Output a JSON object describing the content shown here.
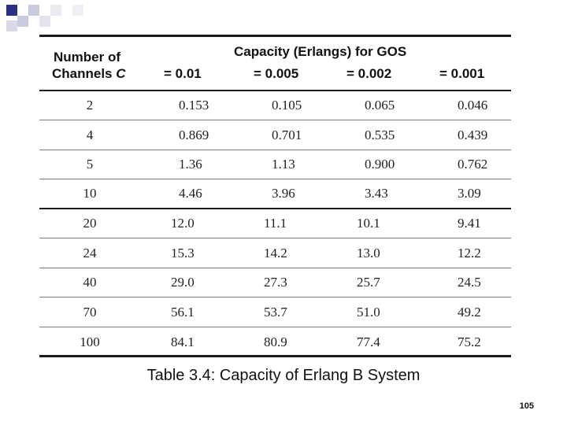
{
  "table": {
    "header_left_line1": "Number of",
    "header_left_line2": "Channels",
    "header_left_var": "C",
    "header_title": "Capacity (Erlangs) for GOS",
    "gos_columns": [
      "= 0.01",
      "= 0.005",
      "= 0.002",
      "= 0.001"
    ],
    "rows": [
      {
        "c": "2",
        "values": [
          "0.153",
          "0.105",
          "0.065",
          "0.046"
        ]
      },
      {
        "c": "4",
        "values": [
          "0.869",
          "0.701",
          "0.535",
          "0.439"
        ]
      },
      {
        "c": "5",
        "values": [
          "1.36",
          "1.13",
          "0.900",
          "0.762"
        ]
      },
      {
        "c": "10",
        "values": [
          "4.46",
          "3.96",
          "3.43",
          "3.09"
        ]
      },
      {
        "c": "20",
        "values": [
          "12.0",
          "11.1",
          "10.1",
          "9.41"
        ]
      },
      {
        "c": "24",
        "values": [
          "15.3",
          "14.2",
          "13.0",
          "12.2"
        ]
      },
      {
        "c": "40",
        "values": [
          "29.0",
          "27.3",
          "25.7",
          "24.5"
        ]
      },
      {
        "c": "70",
        "values": [
          "56.1",
          "53.7",
          "51.0",
          "49.2"
        ]
      },
      {
        "c": "100",
        "values": [
          "84.1",
          "80.9",
          "77.4",
          "75.2"
        ]
      }
    ]
  },
  "caption": "Table 3.4: Capacity of Erlang B System",
  "page_number": "105",
  "colors": {
    "deco_navy": "#2b3187",
    "deco_light": "#c9cbe0"
  }
}
